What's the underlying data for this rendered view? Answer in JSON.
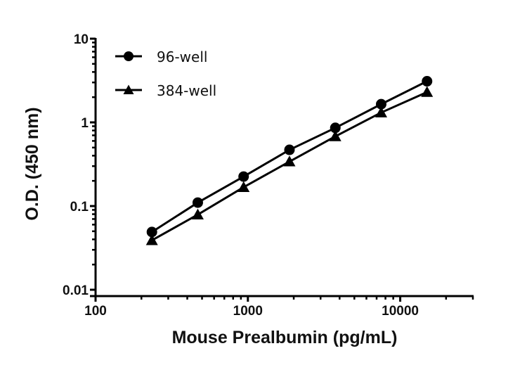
{
  "chart_data": {
    "type": "line",
    "title": "",
    "xlabel": "Mouse Prealbumin (pg/mL)",
    "ylabel": "O.D. (450 nm)",
    "xscale": "log",
    "yscale": "log",
    "xlim": [
      100,
      30000
    ],
    "ylim": [
      0.01,
      10
    ],
    "xticks": [
      {
        "value": 100,
        "label": "100"
      },
      {
        "value": 1000,
        "label": "1000"
      },
      {
        "value": 10000,
        "label": "10000"
      }
    ],
    "yticks": [
      {
        "value": 0.01,
        "label": "0.01"
      },
      {
        "value": 0.1,
        "label": "0.1"
      },
      {
        "value": 1,
        "label": "1"
      },
      {
        "value": 10,
        "label": "10"
      }
    ],
    "grid": false,
    "legend_position": "top-left",
    "x": [
      234.4,
      468.8,
      937.5,
      1875,
      3750,
      7500,
      15000
    ],
    "series": [
      {
        "name": "96-well",
        "marker": "circle",
        "color": "#000000",
        "values": [
          0.049,
          0.11,
          0.225,
          0.47,
          0.86,
          1.65,
          3.1
        ]
      },
      {
        "name": "384-well",
        "marker": "triangle",
        "color": "#000000",
        "values": [
          0.039,
          0.079,
          0.168,
          0.34,
          0.68,
          1.31,
          2.3
        ]
      }
    ]
  }
}
